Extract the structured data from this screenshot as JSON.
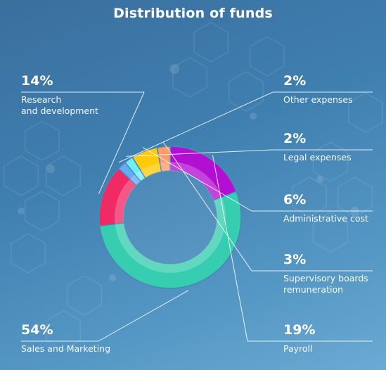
{
  "title": "Distribution of funds",
  "chart_data": {
    "type": "pie",
    "donut": true,
    "title": "Distribution of funds",
    "slices": [
      {
        "name": "Research and development",
        "label_lines": [
          "Research",
          "and development"
        ],
        "value": 14,
        "value_label": "14%",
        "color": "#f02a64"
      },
      {
        "name": "Other expenses",
        "label_lines": [
          "Other expenses"
        ],
        "value": 2,
        "value_label": "2%",
        "color": "#64aaf5"
      },
      {
        "name": "Legal expenses",
        "label_lines": [
          "Legal expenses"
        ],
        "value": 2,
        "value_label": "2%",
        "color": "#6ef0fa"
      },
      {
        "name": "Administrative cost",
        "label_lines": [
          "Administrative cost"
        ],
        "value": 6,
        "value_label": "6%",
        "color": "#ffca0a"
      },
      {
        "name": "Supervisory boards remuneration",
        "label_lines": [
          "Supervisory boards",
          "remuneration"
        ],
        "value": 3,
        "value_label": "3%",
        "color": "#ff9a6a"
      },
      {
        "name": "Payroll",
        "label_lines": [
          "Payroll"
        ],
        "value": 19,
        "value_label": "19%",
        "color": "#b20fd2"
      },
      {
        "name": "Sales and Marketing",
        "label_lines": [
          "Sales and Marketing"
        ],
        "value": 54,
        "value_label": "54%",
        "color": "#36cdb0"
      }
    ]
  }
}
